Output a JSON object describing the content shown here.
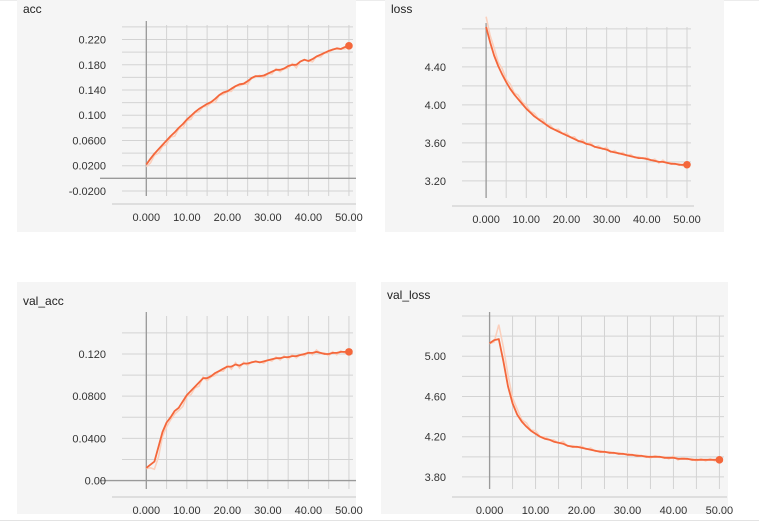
{
  "colors": {
    "series": "#f4673b",
    "smoothed_faint": "#fbd0bd"
  },
  "chart_data": [
    {
      "type": "line",
      "title": "acc",
      "xlabel": "",
      "ylabel": "",
      "xlim": [
        -6,
        51
      ],
      "ylim": [
        -0.028,
        0.243
      ],
      "xticks": [
        "0.000",
        "10.00",
        "20.00",
        "30.00",
        "40.00",
        "50.00"
      ],
      "yticks": [
        "-0.0200",
        "0.0200",
        "0.0600",
        "0.100",
        "0.140",
        "0.180",
        "0.220"
      ],
      "series": [
        {
          "x": [
            0,
            1,
            2,
            3,
            4,
            5,
            6,
            7,
            8,
            9,
            10,
            11,
            12,
            13,
            14,
            15,
            16,
            17,
            18,
            19,
            20,
            21,
            22,
            23,
            24,
            25,
            26,
            27,
            28,
            29,
            30,
            31,
            32,
            33,
            34,
            35,
            36,
            37,
            38,
            39,
            40,
            41,
            42,
            43,
            44,
            45,
            46,
            47,
            48,
            49,
            50
          ],
          "values": [
            0.022,
            0.031,
            0.039,
            0.046,
            0.053,
            0.06,
            0.067,
            0.073,
            0.08,
            0.086,
            0.093,
            0.099,
            0.105,
            0.11,
            0.114,
            0.118,
            0.121,
            0.126,
            0.132,
            0.136,
            0.138,
            0.142,
            0.146,
            0.149,
            0.15,
            0.154,
            0.159,
            0.162,
            0.162,
            0.163,
            0.166,
            0.169,
            0.172,
            0.172,
            0.174,
            0.178,
            0.18,
            0.18,
            0.185,
            0.188,
            0.186,
            0.189,
            0.193,
            0.196,
            0.199,
            0.202,
            0.204,
            0.206,
            0.205,
            0.208,
            0.21
          ]
        }
      ]
    },
    {
      "type": "line",
      "title": "loss",
      "xlabel": "",
      "ylabel": "",
      "xlim": [
        -6,
        51
      ],
      "ylim": [
        3.02,
        4.82
      ],
      "xticks": [
        "0.000",
        "10.00",
        "20.00",
        "30.00",
        "40.00",
        "50.00"
      ],
      "yticks": [
        "3.20",
        "3.60",
        "4.00",
        "4.40"
      ],
      "series": [
        {
          "x": [
            0,
            1,
            2,
            3,
            4,
            5,
            6,
            7,
            8,
            9,
            10,
            11,
            12,
            13,
            14,
            15,
            16,
            17,
            18,
            19,
            20,
            21,
            22,
            23,
            24,
            25,
            26,
            27,
            28,
            29,
            30,
            31,
            32,
            33,
            34,
            35,
            36,
            37,
            38,
            39,
            40,
            41,
            42,
            43,
            44,
            45,
            46,
            47,
            48,
            49,
            50
          ],
          "values": [
            4.82,
            4.66,
            4.52,
            4.41,
            4.32,
            4.24,
            4.17,
            4.11,
            4.06,
            4.01,
            3.96,
            3.92,
            3.88,
            3.85,
            3.82,
            3.79,
            3.76,
            3.74,
            3.72,
            3.7,
            3.68,
            3.66,
            3.64,
            3.62,
            3.61,
            3.59,
            3.58,
            3.56,
            3.55,
            3.54,
            3.53,
            3.51,
            3.5,
            3.49,
            3.48,
            3.47,
            3.46,
            3.45,
            3.44,
            3.44,
            3.43,
            3.42,
            3.41,
            3.4,
            3.4,
            3.39,
            3.38,
            3.38,
            3.37,
            3.37,
            3.37
          ]
        }
      ]
    },
    {
      "type": "line",
      "title": "val_acc",
      "xlabel": "",
      "ylabel": "",
      "xlim": [
        -6,
        51
      ],
      "ylim": [
        -0.008,
        0.156
      ],
      "xticks": [
        "0.000",
        "10.00",
        "20.00",
        "30.00",
        "40.00",
        "50.00"
      ],
      "yticks": [
        "0.00",
        "0.0400",
        "0.0800",
        "0.120"
      ],
      "series": [
        {
          "x": [
            0,
            1,
            2,
            3,
            4,
            5,
            6,
            7,
            8,
            9,
            10,
            11,
            12,
            13,
            14,
            15,
            16,
            17,
            18,
            19,
            20,
            21,
            22,
            23,
            24,
            25,
            26,
            27,
            28,
            29,
            30,
            31,
            32,
            33,
            34,
            35,
            36,
            37,
            38,
            39,
            40,
            41,
            42,
            43,
            44,
            45,
            46,
            47,
            48,
            49,
            50
          ],
          "values": [
            0.012,
            0.015,
            0.018,
            0.032,
            0.046,
            0.055,
            0.06,
            0.066,
            0.069,
            0.075,
            0.081,
            0.085,
            0.089,
            0.093,
            0.097,
            0.097,
            0.099,
            0.102,
            0.104,
            0.106,
            0.108,
            0.108,
            0.11,
            0.109,
            0.111,
            0.111,
            0.112,
            0.113,
            0.112,
            0.113,
            0.114,
            0.115,
            0.116,
            0.116,
            0.117,
            0.117,
            0.118,
            0.118,
            0.119,
            0.12,
            0.121,
            0.121,
            0.122,
            0.121,
            0.12,
            0.12,
            0.121,
            0.121,
            0.122,
            0.122,
            0.122
          ]
        }
      ]
    },
    {
      "type": "line",
      "title": "val_loss",
      "xlabel": "",
      "ylabel": "",
      "xlim": [
        -6,
        51
      ],
      "ylim": [
        3.68,
        5.4
      ],
      "xticks": [
        "0.000",
        "10.00",
        "20.00",
        "30.00",
        "40.00",
        "50.00"
      ],
      "yticks": [
        "3.80",
        "4.20",
        "4.60",
        "5.00"
      ],
      "series": [
        {
          "x": [
            0,
            1,
            2,
            3,
            4,
            5,
            6,
            7,
            8,
            9,
            10,
            11,
            12,
            13,
            14,
            15,
            16,
            17,
            18,
            19,
            20,
            21,
            22,
            23,
            24,
            25,
            26,
            27,
            28,
            29,
            30,
            31,
            32,
            33,
            34,
            35,
            36,
            37,
            38,
            39,
            40,
            41,
            42,
            43,
            44,
            45,
            46,
            47,
            48,
            49,
            50
          ],
          "values": [
            5.13,
            5.16,
            5.17,
            4.95,
            4.7,
            4.53,
            4.42,
            4.35,
            4.3,
            4.26,
            4.23,
            4.2,
            4.18,
            4.17,
            4.15,
            4.14,
            4.13,
            4.11,
            4.1,
            4.1,
            4.09,
            4.08,
            4.07,
            4.06,
            4.05,
            4.05,
            4.04,
            4.04,
            4.03,
            4.03,
            4.02,
            4.02,
            4.01,
            4.01,
            4.0,
            4.0,
            4.0,
            4.0,
            3.99,
            3.99,
            3.99,
            3.98,
            3.98,
            3.98,
            3.97,
            3.97,
            3.97,
            3.97,
            3.97,
            3.97,
            3.97
          ]
        }
      ]
    }
  ]
}
